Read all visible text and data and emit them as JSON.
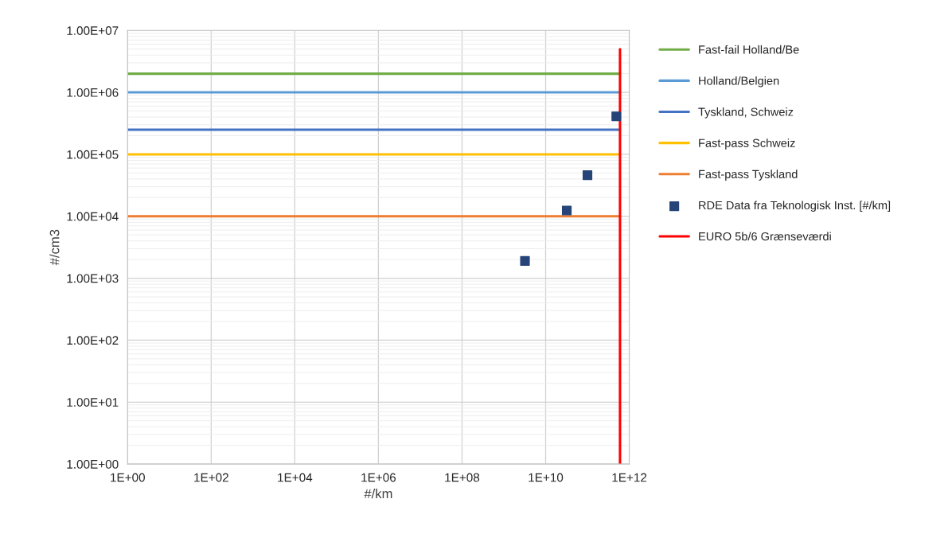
{
  "chart_data": {
    "type": "line",
    "xlabel": "#/km",
    "ylabel": "#/cm3",
    "log": "xy",
    "grid": true,
    "legend": "right",
    "xlim": [
      1,
      1000000000000.0
    ],
    "ylim": [
      1,
      10000000.0
    ],
    "xticks": [
      {
        "value": 1,
        "label": "1E+00"
      },
      {
        "value": 100,
        "label": "1E+02"
      },
      {
        "value": 10000,
        "label": "1E+04"
      },
      {
        "value": 1000000,
        "label": "1E+06"
      },
      {
        "value": 100000000,
        "label": "1E+08"
      },
      {
        "value": 10000000000,
        "label": "1E+10"
      },
      {
        "value": 1000000000000,
        "label": "1E+12"
      }
    ],
    "yticks": [
      {
        "value": 1,
        "label": "1.00E+00"
      },
      {
        "value": 10,
        "label": "1.00E+01"
      },
      {
        "value": 100,
        "label": "1.00E+02"
      },
      {
        "value": 1000,
        "label": "1.00E+03"
      },
      {
        "value": 10000,
        "label": "1.00E+04"
      },
      {
        "value": 100000,
        "label": "1.00E+05"
      },
      {
        "value": 1000000,
        "label": "1.00E+06"
      },
      {
        "value": 10000000,
        "label": "1.00E+07"
      }
    ],
    "series": [
      {
        "name": "Fast-fail Holland/Be",
        "color": "#70ad47",
        "x": [
          1,
          600000000000.0
        ],
        "values": [
          2000000.0,
          2000000.0
        ]
      },
      {
        "name": "Holland/Belgien",
        "color": "#5b9bd5",
        "x": [
          1,
          600000000000.0
        ],
        "values": [
          1000000.0,
          1000000.0
        ]
      },
      {
        "name": "Tyskland, Schweiz",
        "color": "#4472c4",
        "x": [
          1,
          600000000000.0
        ],
        "values": [
          250000.0,
          250000.0
        ]
      },
      {
        "name": "Fast-pass Schweiz",
        "color": "#ffc000",
        "x": [
          1,
          600000000000.0
        ],
        "values": [
          100000.0,
          100000.0
        ]
      },
      {
        "name": "Fast-pass Tyskland",
        "color": "#ed7d31",
        "x": [
          1,
          600000000000.0
        ],
        "values": [
          10000.0,
          10000.0
        ]
      },
      {
        "name": "RDE Data fra Teknologisk Inst. [#/km]",
        "type": "scatter",
        "marker": "square",
        "color": "#264478",
        "x": [
          3200000000.0,
          32000000000.0,
          100000000000.0,
          490000000000.0
        ],
        "values": [
          1900,
          12400,
          46000,
          410000
        ]
      },
      {
        "name": "EURO 5b/6 Grænseværdi",
        "color": "#ff0000",
        "x": [
          600000000000.0,
          600000000000.0
        ],
        "values": [
          1,
          5000000.0
        ]
      }
    ]
  }
}
